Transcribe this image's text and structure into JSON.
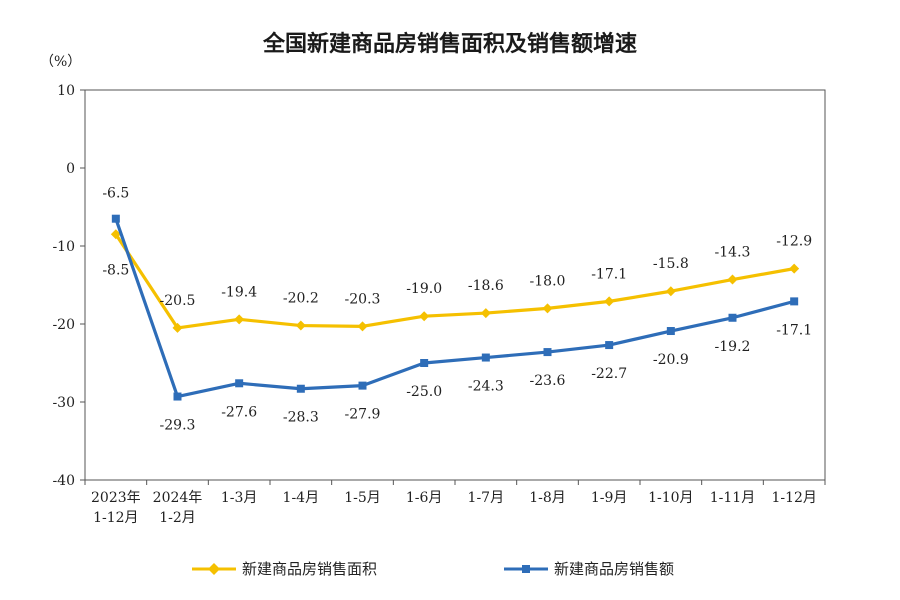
{
  "chart_data": {
    "type": "line",
    "title": "全国新建商品房销售面积及销售额增速",
    "ylabel": "（%）",
    "xlabel": "",
    "ylim": [
      -40,
      10
    ],
    "yticks": [
      10,
      0,
      -10,
      -20,
      -30,
      -40
    ],
    "grid": false,
    "legend_position": "bottom",
    "categories": [
      [
        "2023年",
        "1-12月"
      ],
      [
        "2024年",
        "1-2月"
      ],
      [
        "1-3月"
      ],
      [
        "1-4月"
      ],
      [
        "1-5月"
      ],
      [
        "1-6月"
      ],
      [
        "1-7月"
      ],
      [
        "1-8月"
      ],
      [
        "1-9月"
      ],
      [
        "1-10月"
      ],
      [
        "1-11月"
      ],
      [
        "1-12月"
      ]
    ],
    "series": [
      {
        "name": "新建商品房销售面积",
        "color": "#F5C000",
        "marker": "diamond",
        "values": [
          -8.5,
          -20.5,
          -19.4,
          -20.2,
          -20.3,
          -19.0,
          -18.6,
          -18.0,
          -17.1,
          -15.8,
          -14.3,
          -12.9
        ],
        "labels": [
          "-8.5",
          "-20.5",
          "-19.4",
          "-20.2",
          "-20.3",
          "-19.0",
          "-18.6",
          "-18.0",
          "-17.1",
          "-15.8",
          "-14.3",
          "-12.9"
        ]
      },
      {
        "name": "新建商品房销售额",
        "color": "#2E6DB8",
        "marker": "square",
        "values": [
          -6.5,
          -29.3,
          -27.6,
          -28.3,
          -27.9,
          -25.0,
          -24.3,
          -23.6,
          -22.7,
          -20.9,
          -19.2,
          -17.1
        ],
        "labels": [
          "-6.5",
          "-29.3",
          "-27.6",
          "-28.3",
          "-27.9",
          "-25.0",
          "-24.3",
          "-23.6",
          "-22.7",
          "-20.9",
          "-19.2",
          "-17.1"
        ]
      }
    ]
  }
}
